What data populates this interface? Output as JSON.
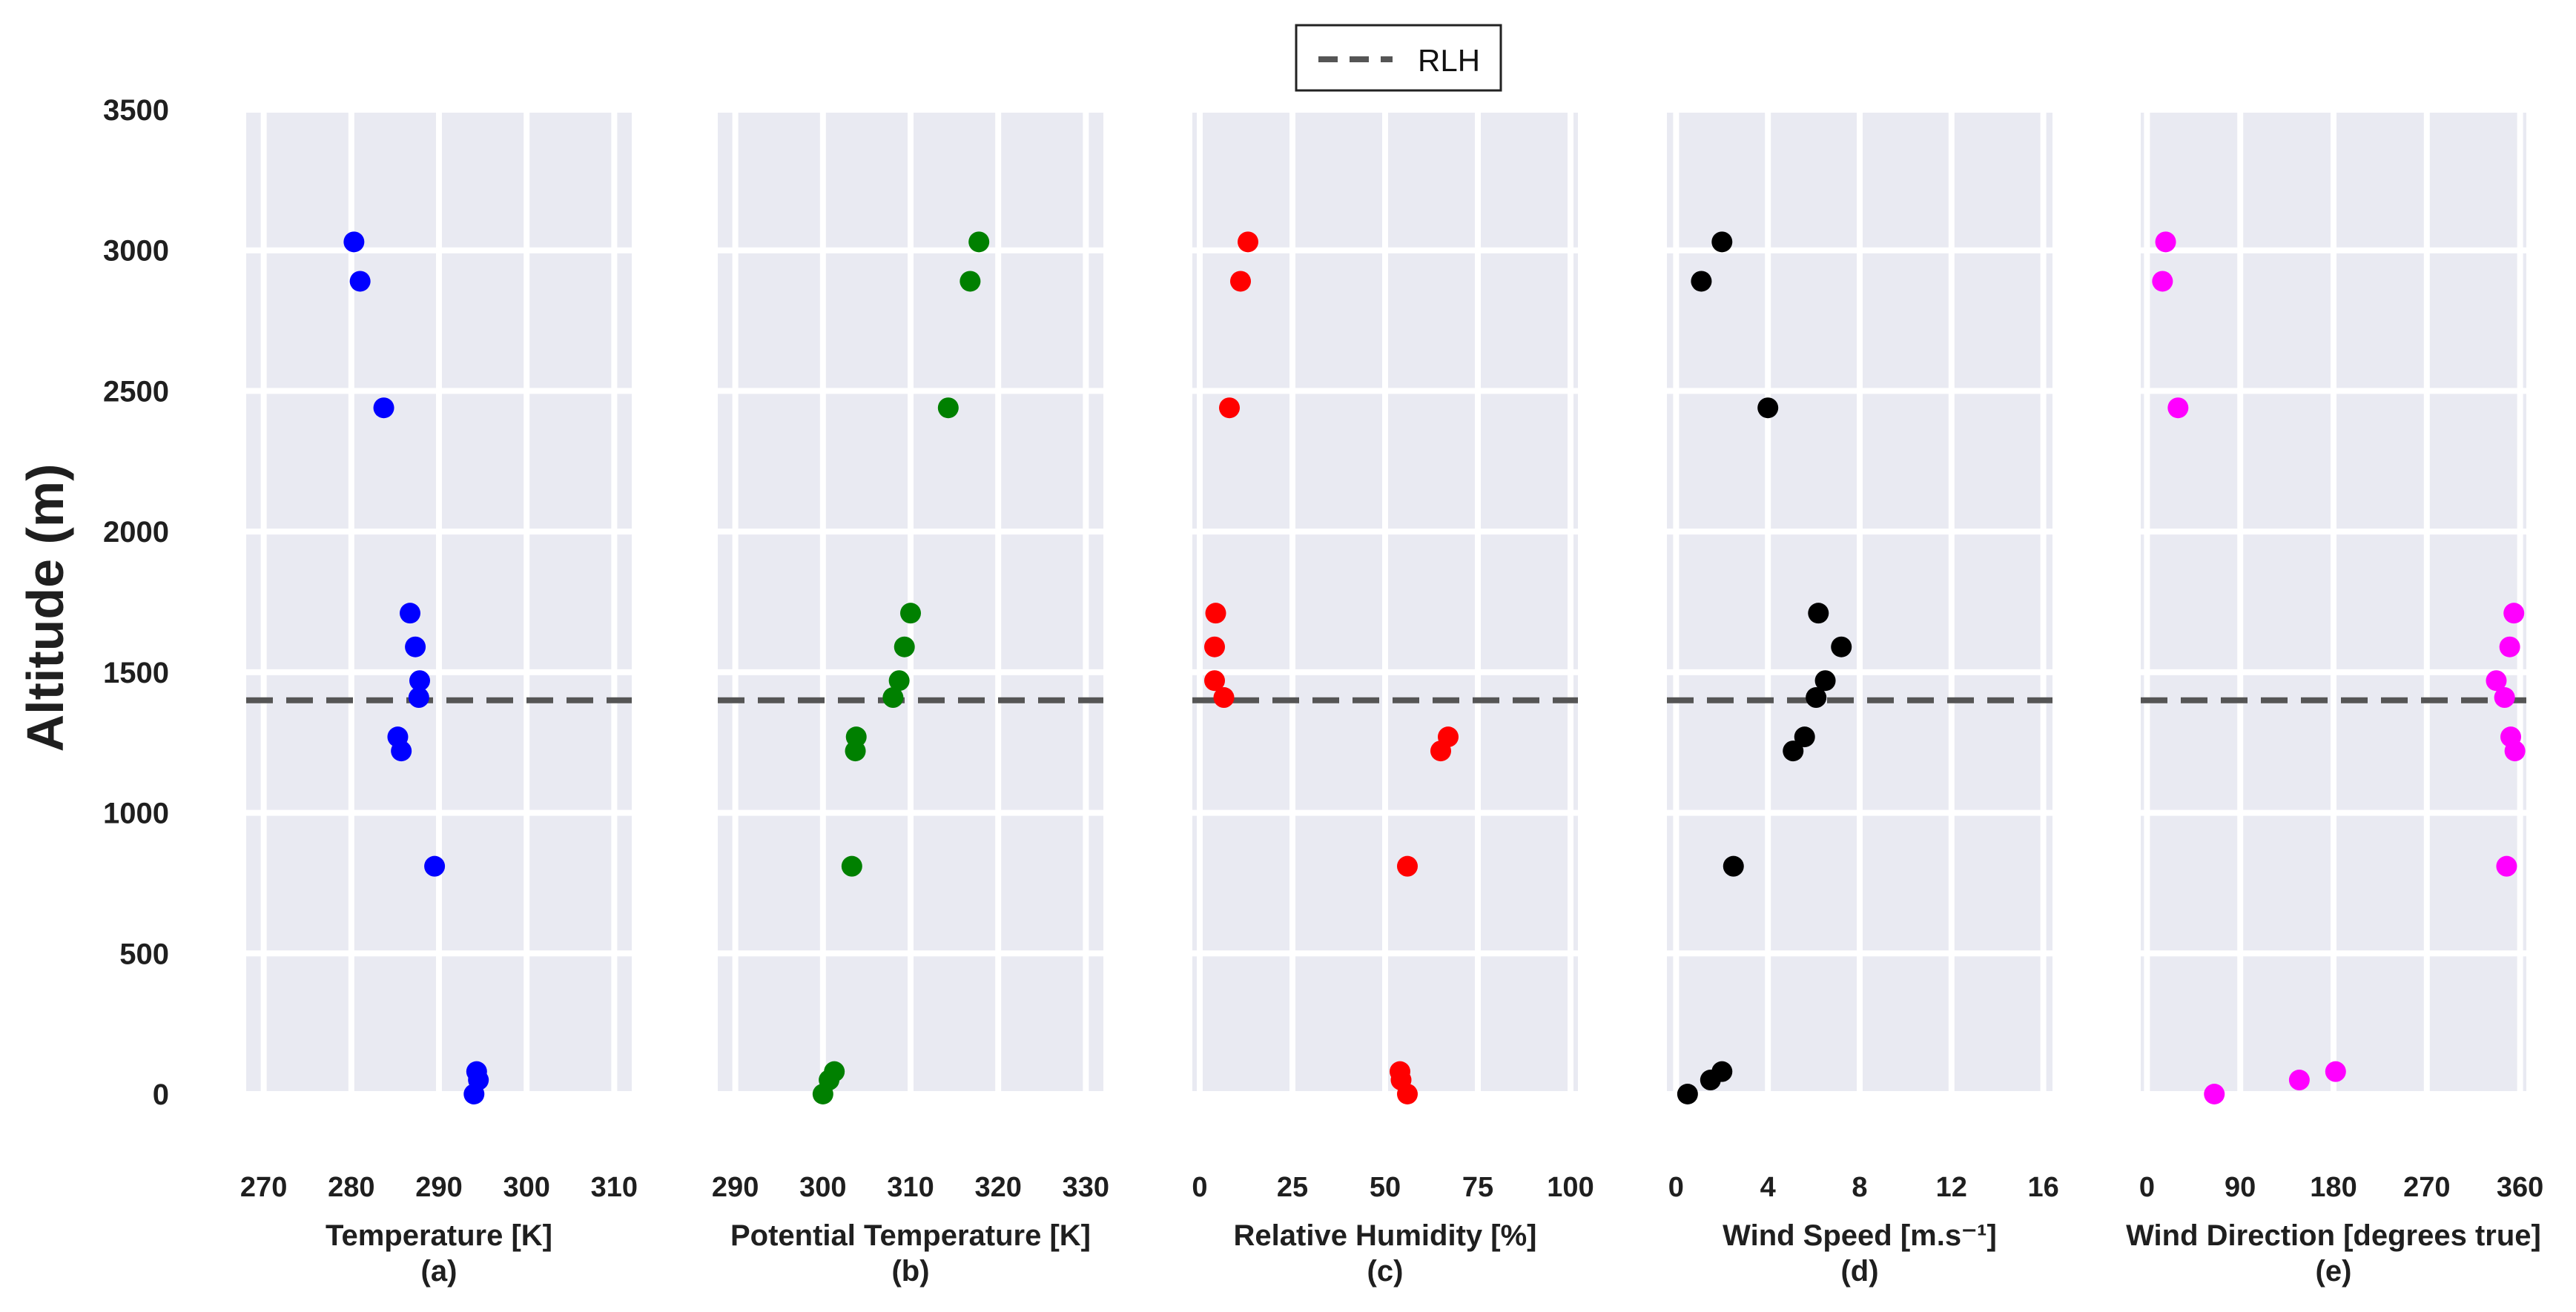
{
  "chart_data": {
    "type": "scatter",
    "shared_y": {
      "label": "Altitude (m)",
      "ylim": [
        0,
        3500
      ],
      "ticks": [
        0,
        500,
        1000,
        1500,
        2000,
        2500,
        3000,
        3500
      ],
      "tick_labels": [
        "0",
        "500",
        "1000",
        "1500",
        "2000",
        "2500",
        "3000",
        "3500"
      ]
    },
    "legend": {
      "label": "RLH",
      "style": "dashed-line",
      "placement": "top-center"
    },
    "rlh_altitude": 1400,
    "altitudes": [
      0,
      50,
      80,
      810,
      1220,
      1270,
      1410,
      1470,
      1590,
      1710,
      2440,
      2890,
      3030
    ],
    "panels": [
      {
        "id": "a",
        "xlabel": "Temperature [K]",
        "sublabel": "(a)",
        "xlim": [
          268,
          312
        ],
        "ticks": [
          270,
          280,
          290,
          300,
          310
        ],
        "tick_labels": [
          "270",
          "280",
          "290",
          "300",
          "310"
        ],
        "color": "#0000ff",
        "values": [
          294.0,
          294.5,
          294.3,
          289.5,
          285.7,
          285.3,
          287.7,
          287.8,
          287.3,
          286.7,
          283.7,
          281.0,
          280.3
        ]
      },
      {
        "id": "b",
        "xlabel": "Potential Temperature [K]",
        "sublabel": "(b)",
        "xlim": [
          288,
          332
        ],
        "ticks": [
          290,
          300,
          310,
          320,
          330
        ],
        "tick_labels": [
          "290",
          "300",
          "310",
          "320",
          "330"
        ],
        "color": "#008000",
        "values": [
          300.0,
          300.7,
          301.3,
          303.3,
          303.7,
          303.8,
          308.0,
          308.7,
          309.3,
          310.0,
          314.3,
          316.8,
          317.8
        ]
      },
      {
        "id": "c",
        "xlabel": "Relative Humidity [%]",
        "sublabel": "(c)",
        "xlim": [
          -2,
          102
        ],
        "ticks": [
          0,
          25,
          50,
          75,
          100
        ],
        "tick_labels": [
          "0",
          "25",
          "50",
          "75",
          "100"
        ],
        "color": "#ff0000",
        "values": [
          56.0,
          54.3,
          54.0,
          56.0,
          65.0,
          67.0,
          6.5,
          4.0,
          4.0,
          4.3,
          8.0,
          11.0,
          13.0
        ]
      },
      {
        "id": "d",
        "xlabel": "Wind Speed [m.s⁻¹]",
        "sublabel": "(d)",
        "xlim": [
          -0.4,
          16.4
        ],
        "ticks": [
          0,
          4,
          8,
          12,
          16
        ],
        "tick_labels": [
          "0",
          "4",
          "8",
          "12",
          "16"
        ],
        "color": "#000000",
        "values": [
          0.5,
          1.5,
          2.0,
          2.5,
          5.1,
          5.6,
          6.1,
          6.5,
          7.2,
          6.2,
          4.0,
          1.1,
          2.0
        ]
      },
      {
        "id": "e",
        "xlabel": "Wind Direction [degrees true]",
        "sublabel": "(e)",
        "xlim": [
          -6,
          366
        ],
        "ticks": [
          0,
          90,
          180,
          270,
          360
        ],
        "tick_labels": [
          "0",
          "90",
          "180",
          "270",
          "360"
        ],
        "color": "#ff00ff",
        "values": [
          65,
          147,
          182,
          347,
          355,
          351,
          345,
          337,
          350,
          354,
          30,
          15,
          18
        ]
      }
    ]
  }
}
